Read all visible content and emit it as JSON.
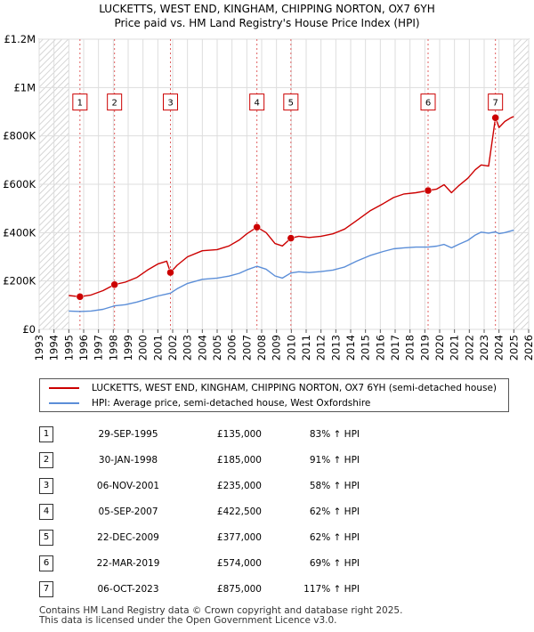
{
  "chart_data": {
    "type": "line",
    "title": "LUCKETTS, WEST END, KINGHAM, CHIPPING NORTON, OX7 6YH",
    "subtitle": "Price paid vs. HM Land Registry's House Price Index (HPI)",
    "xlim": [
      1993,
      2026
    ],
    "ylim": [
      0,
      1200000
    ],
    "x_ticks": [
      "1993",
      "1994",
      "1995",
      "1996",
      "1997",
      "1998",
      "1999",
      "2000",
      "2001",
      "2002",
      "2003",
      "2004",
      "2005",
      "2006",
      "2007",
      "2008",
      "2009",
      "2010",
      "2011",
      "2012",
      "2013",
      "2014",
      "2015",
      "2016",
      "2017",
      "2018",
      "2019",
      "2020",
      "2021",
      "2022",
      "2023",
      "2024",
      "2025",
      "2026"
    ],
    "y_ticks": [
      {
        "value": 0,
        "label": "£0"
      },
      {
        "value": 200000,
        "label": "£200K"
      },
      {
        "value": 400000,
        "label": "£400K"
      },
      {
        "value": 600000,
        "label": "£600K"
      },
      {
        "value": 800000,
        "label": "£800K"
      },
      {
        "value": 1000000,
        "label": "£1M"
      },
      {
        "value": 1200000,
        "label": "£1.2M"
      }
    ],
    "hatched_ranges": [
      [
        1993,
        1995.0
      ],
      [
        2025.0,
        2026
      ]
    ],
    "series": [
      {
        "name": "LUCKETTS, WEST END, KINGHAM, CHIPPING NORTON, OX7 6YH (semi-detached house)",
        "color": "#cc0000",
        "points": [
          [
            1995.0,
            140000
          ],
          [
            1995.75,
            135000
          ],
          [
            1996.5,
            142000
          ],
          [
            1997.3,
            160000
          ],
          [
            1998.08,
            185000
          ],
          [
            1998.8,
            195000
          ],
          [
            1999.6,
            215000
          ],
          [
            2000.3,
            245000
          ],
          [
            2001.0,
            270000
          ],
          [
            2001.6,
            282000
          ],
          [
            2001.85,
            235000
          ],
          [
            2002.3,
            265000
          ],
          [
            2003.0,
            300000
          ],
          [
            2004.0,
            325000
          ],
          [
            2005.0,
            330000
          ],
          [
            2005.8,
            345000
          ],
          [
            2006.5,
            370000
          ],
          [
            2007.0,
            395000
          ],
          [
            2007.68,
            422500
          ],
          [
            2008.3,
            400000
          ],
          [
            2008.9,
            355000
          ],
          [
            2009.4,
            345000
          ],
          [
            2009.97,
            377000
          ],
          [
            2010.5,
            385000
          ],
          [
            2011.2,
            380000
          ],
          [
            2012.0,
            385000
          ],
          [
            2012.8,
            395000
          ],
          [
            2013.6,
            415000
          ],
          [
            2014.4,
            450000
          ],
          [
            2015.3,
            490000
          ],
          [
            2016.2,
            520000
          ],
          [
            2016.9,
            545000
          ],
          [
            2017.6,
            560000
          ],
          [
            2018.4,
            565000
          ],
          [
            2019.22,
            574000
          ],
          [
            2019.8,
            580000
          ],
          [
            2020.3,
            598000
          ],
          [
            2020.8,
            565000
          ],
          [
            2021.3,
            595000
          ],
          [
            2021.9,
            625000
          ],
          [
            2022.4,
            660000
          ],
          [
            2022.8,
            680000
          ],
          [
            2023.3,
            675000
          ],
          [
            2023.76,
            875000
          ],
          [
            2024.0,
            835000
          ],
          [
            2024.4,
            860000
          ],
          [
            2024.8,
            875000
          ],
          [
            2025.0,
            880000
          ]
        ]
      },
      {
        "name": "HPI: Average price, semi-detached house, West Oxfordshire",
        "color": "#5b8ed8",
        "points": [
          [
            1995.0,
            76000
          ],
          [
            1995.75,
            74000
          ],
          [
            1996.5,
            76000
          ],
          [
            1997.3,
            83000
          ],
          [
            1998.08,
            97000
          ],
          [
            1998.8,
            102000
          ],
          [
            1999.6,
            113000
          ],
          [
            2000.3,
            126000
          ],
          [
            2001.0,
            138000
          ],
          [
            2001.6,
            146000
          ],
          [
            2001.85,
            150000
          ],
          [
            2002.3,
            168000
          ],
          [
            2003.0,
            190000
          ],
          [
            2004.0,
            207000
          ],
          [
            2005.0,
            212000
          ],
          [
            2005.8,
            220000
          ],
          [
            2006.5,
            232000
          ],
          [
            2007.0,
            246000
          ],
          [
            2007.68,
            261000
          ],
          [
            2008.3,
            249000
          ],
          [
            2008.9,
            221000
          ],
          [
            2009.4,
            212000
          ],
          [
            2009.97,
            233000
          ],
          [
            2010.5,
            238000
          ],
          [
            2011.2,
            235000
          ],
          [
            2012.0,
            239000
          ],
          [
            2012.8,
            245000
          ],
          [
            2013.6,
            258000
          ],
          [
            2014.4,
            282000
          ],
          [
            2015.3,
            305000
          ],
          [
            2016.2,
            322000
          ],
          [
            2016.9,
            333000
          ],
          [
            2017.6,
            337000
          ],
          [
            2018.4,
            340000
          ],
          [
            2019.22,
            340000
          ],
          [
            2019.8,
            344000
          ],
          [
            2020.3,
            351000
          ],
          [
            2020.8,
            337000
          ],
          [
            2021.3,
            352000
          ],
          [
            2021.9,
            368000
          ],
          [
            2022.4,
            390000
          ],
          [
            2022.8,
            402000
          ],
          [
            2023.3,
            398000
          ],
          [
            2023.76,
            403000
          ],
          [
            2024.0,
            396000
          ],
          [
            2024.4,
            400000
          ],
          [
            2024.8,
            407000
          ],
          [
            2025.0,
            410000
          ]
        ]
      }
    ],
    "sales": [
      {
        "num": "1",
        "x": 1995.75,
        "price": 135000
      },
      {
        "num": "2",
        "x": 1998.08,
        "price": 185000
      },
      {
        "num": "3",
        "x": 2001.85,
        "price": 235000
      },
      {
        "num": "4",
        "x": 2007.68,
        "price": 422500
      },
      {
        "num": "5",
        "x": 2009.97,
        "price": 377000
      },
      {
        "num": "6",
        "x": 2019.22,
        "price": 574000
      },
      {
        "num": "7",
        "x": 2023.76,
        "price": 875000
      }
    ],
    "marker_label_value": 940000
  },
  "legend": {
    "items": [
      {
        "label": "LUCKETTS, WEST END, KINGHAM, CHIPPING NORTON, OX7 6YH (semi-detached house)",
        "color": "#cc0000"
      },
      {
        "label": "HPI: Average price, semi-detached house, West Oxfordshire",
        "color": "#5b8ed8"
      }
    ]
  },
  "table": {
    "rows": [
      {
        "num": "1",
        "date": "29-SEP-1995",
        "price": "£135,000",
        "hpi": "83% ↑ HPI"
      },
      {
        "num": "2",
        "date": "30-JAN-1998",
        "price": "£185,000",
        "hpi": "91% ↑ HPI"
      },
      {
        "num": "3",
        "date": "06-NOV-2001",
        "price": "£235,000",
        "hpi": "58% ↑ HPI"
      },
      {
        "num": "4",
        "date": "05-SEP-2007",
        "price": "£422,500",
        "hpi": "62% ↑ HPI"
      },
      {
        "num": "5",
        "date": "22-DEC-2009",
        "price": "£377,000",
        "hpi": "62% ↑ HPI"
      },
      {
        "num": "6",
        "date": "22-MAR-2019",
        "price": "£574,000",
        "hpi": "69% ↑ HPI"
      },
      {
        "num": "7",
        "date": "06-OCT-2023",
        "price": "£875,000",
        "hpi": "117% ↑ HPI"
      }
    ]
  },
  "footer": {
    "line1": "Contains HM Land Registry data © Crown copyright and database right 2025.",
    "line2": "This data is licensed under the Open Government Licence v3.0."
  }
}
